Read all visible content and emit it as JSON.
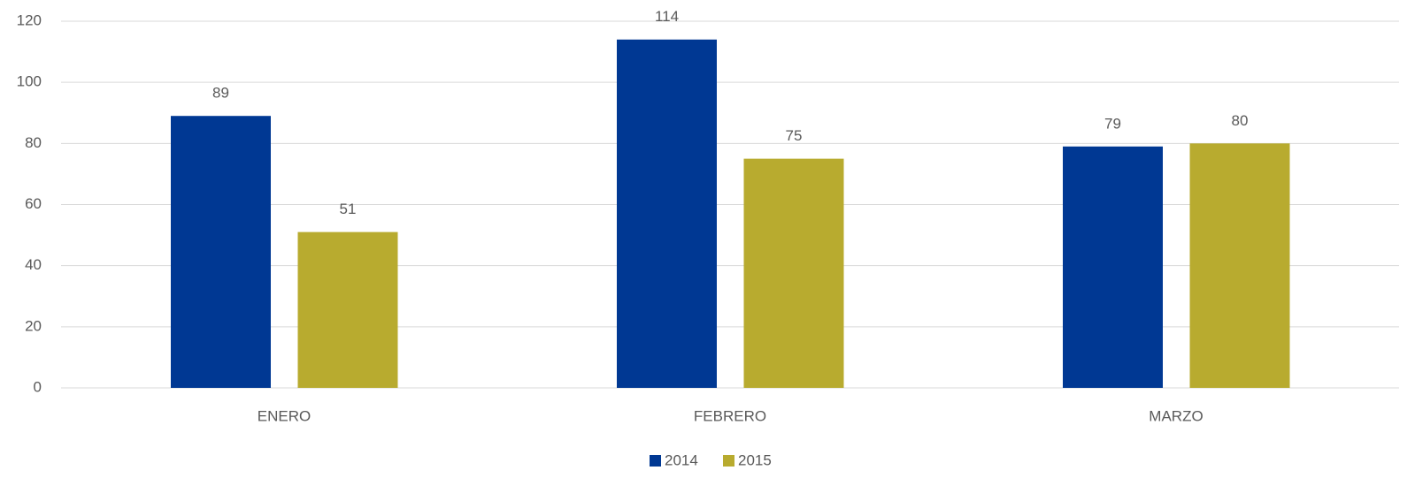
{
  "chart_data": {
    "type": "bar",
    "categories": [
      "ENERO",
      "FEBRERO",
      "MARZO"
    ],
    "series": [
      {
        "name": "2014",
        "color": "#003893",
        "values": [
          89,
          114,
          79
        ]
      },
      {
        "name": "2015",
        "color": "#b8ab2f",
        "values": [
          51,
          75,
          80
        ]
      }
    ],
    "ylim": [
      0,
      120
    ],
    "yticks": [
      0,
      20,
      40,
      60,
      80,
      100,
      120
    ],
    "grid": true,
    "legend": "bottom"
  }
}
